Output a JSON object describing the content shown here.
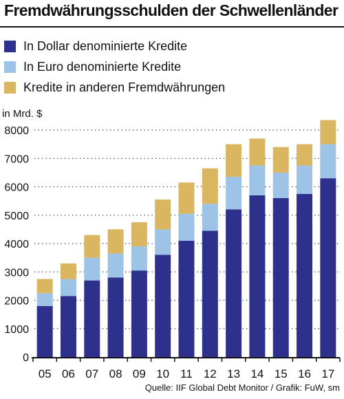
{
  "header": {
    "title": "Fremdwährungsschulden der Schwellenländer"
  },
  "legend": [
    {
      "label": "In Dollar denominierte Kredite",
      "color": "#2e318c"
    },
    {
      "label": "In Euro denominierte Kredite",
      "color": "#9dc3e6"
    },
    {
      "label": "Kredite in anderen Fremdwährungen",
      "color": "#d9b65f"
    }
  ],
  "footer": {
    "source": "Quelle: IIF Global Debt Monitor / Grafik: FuW, sm"
  },
  "chart_data": {
    "type": "bar",
    "stacked": true,
    "unit_label": "in Mrd. $",
    "categories": [
      "05",
      "06",
      "07",
      "08",
      "09",
      "10",
      "11",
      "12",
      "13",
      "14",
      "15",
      "16",
      "17"
    ],
    "series": [
      {
        "name": "In Dollar denominierte Kredite",
        "color": "#2e318c",
        "values": [
          1800,
          2150,
          2700,
          2800,
          3050,
          3600,
          4100,
          4450,
          5200,
          5700,
          5600,
          5750,
          6300
        ]
      },
      {
        "name": "In Euro denominierte Kredite",
        "color": "#9dc3e6",
        "values": [
          450,
          600,
          800,
          850,
          850,
          900,
          950,
          950,
          1150,
          1050,
          900,
          1000,
          1200
        ]
      },
      {
        "name": "Kredite in anderen Fremdwährungen",
        "color": "#d9b65f",
        "values": [
          500,
          550,
          800,
          850,
          850,
          1050,
          1100,
          1250,
          1150,
          950,
          900,
          750,
          850
        ]
      }
    ],
    "ylim": [
      0,
      8000
    ],
    "yticks": [
      0,
      1000,
      2000,
      3000,
      4000,
      5000,
      6000,
      7000,
      8000
    ],
    "grid": "dotted-horizontal",
    "legend_position": "top-left"
  }
}
